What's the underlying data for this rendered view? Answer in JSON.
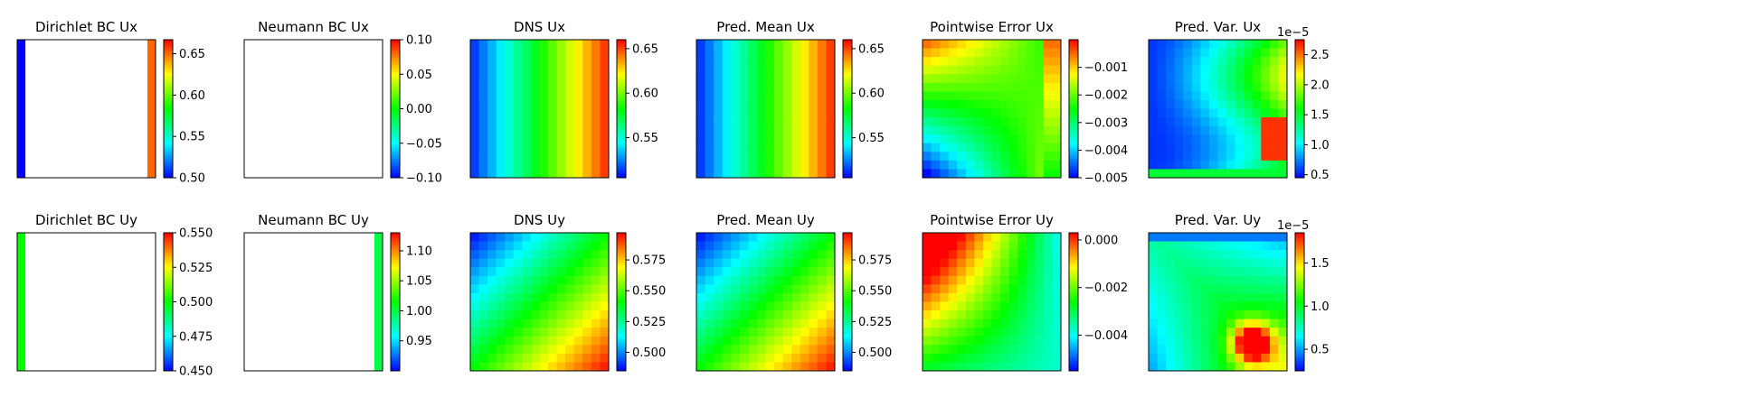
{
  "colormap": [
    "#0000ff",
    "#0080ff",
    "#00ffff",
    "#00ff80",
    "#00ff00",
    "#80ff00",
    "#ffff00",
    "#ff8000",
    "#ff0000"
  ],
  "chart_data": [
    {
      "type": "heatmap",
      "title": "Dirichlet BC Ux",
      "grid": 16,
      "field": "dirichlet_x",
      "left": 0.5,
      "right": 0.65,
      "vmin": 0.5,
      "vmax": 0.667,
      "ticks": [
        0.5,
        0.55,
        0.6,
        0.65
      ],
      "tick_labels": [
        "0.50",
        "0.55",
        "0.60",
        "0.65"
      ],
      "exponent": ""
    },
    {
      "type": "heatmap",
      "title": "Neumann BC Ux",
      "grid": 16,
      "field": "blank",
      "vmin": -0.1,
      "vmax": 0.1,
      "ticks": [
        -0.1,
        -0.05,
        0,
        0.05,
        0.1
      ],
      "tick_labels": [
        "−0.10",
        "−0.05",
        "0.00",
        "0.05",
        "0.10"
      ],
      "exponent": ""
    },
    {
      "type": "heatmap",
      "title": "DNS Ux",
      "grid": 16,
      "field": "ramp_x",
      "vmin": 0.505,
      "vmax": 0.66,
      "ticks": [
        0.55,
        0.6,
        0.65
      ],
      "tick_labels": [
        "0.55",
        "0.60",
        "0.65"
      ],
      "exponent": ""
    },
    {
      "type": "heatmap",
      "title": "Pred. Mean Ux",
      "grid": 16,
      "field": "ramp_x",
      "vmin": 0.505,
      "vmax": 0.66,
      "ticks": [
        0.55,
        0.6,
        0.65
      ],
      "tick_labels": [
        "0.55",
        "0.60",
        "0.65"
      ],
      "exponent": ""
    },
    {
      "type": "heatmap",
      "title": "Pointwise Error Ux",
      "grid": 16,
      "field": "error_x",
      "vmin": -0.005,
      "vmax": 0,
      "ticks": [
        -0.005,
        -0.004,
        -0.003,
        -0.002,
        -0.001
      ],
      "tick_labels": [
        "−0.005",
        "−0.004",
        "−0.003",
        "−0.002",
        "−0.001"
      ],
      "exponent": ""
    },
    {
      "type": "heatmap",
      "title": "Pred. Var. Ux",
      "grid": 16,
      "field": "var_x",
      "vmin": 0.45,
      "vmax": 2.75,
      "ticks": [
        0.5,
        1.0,
        1.5,
        2.0,
        2.5
      ],
      "tick_labels": [
        "0.5",
        "1.0",
        "1.5",
        "2.0",
        "2.5"
      ],
      "exponent": "1e−5"
    },
    {
      "type": "heatmap",
      "title": "Dirichlet BC Uy",
      "grid": 16,
      "field": "dirichlet_y",
      "left": 0.5,
      "vmin": 0.45,
      "vmax": 0.55,
      "ticks": [
        0.45,
        0.475,
        0.5,
        0.525,
        0.55
      ],
      "tick_labels": [
        "0.450",
        "0.475",
        "0.500",
        "0.525",
        "0.550"
      ],
      "exponent": ""
    },
    {
      "type": "heatmap",
      "title": "Neumann BC Uy",
      "grid": 16,
      "field": "neumann_y",
      "right": 1.0,
      "vmin": 0.9,
      "vmax": 1.13,
      "ticks": [
        0.95,
        1.0,
        1.05,
        1.1
      ],
      "tick_labels": [
        "0.95",
        "1.00",
        "1.05",
        "1.10"
      ],
      "exponent": ""
    },
    {
      "type": "heatmap",
      "title": "DNS Uy",
      "grid": 16,
      "field": "diag_y",
      "vmin": 0.485,
      "vmax": 0.597,
      "ticks": [
        0.5,
        0.525,
        0.55,
        0.575
      ],
      "tick_labels": [
        "0.500",
        "0.525",
        "0.550",
        "0.575"
      ],
      "exponent": ""
    },
    {
      "type": "heatmap",
      "title": "Pred. Mean Uy",
      "grid": 16,
      "field": "diag_y",
      "vmin": 0.485,
      "vmax": 0.597,
      "ticks": [
        0.5,
        0.525,
        0.55,
        0.575
      ],
      "tick_labels": [
        "0.500",
        "0.525",
        "0.550",
        "0.575"
      ],
      "exponent": ""
    },
    {
      "type": "heatmap",
      "title": "Pointwise Error Uy",
      "grid": 16,
      "field": "error_y",
      "vmin": -0.0055,
      "vmax": 0.0003,
      "ticks": [
        -0.004,
        -0.002,
        0
      ],
      "tick_labels": [
        "−0.004",
        "−0.002",
        "0.000"
      ],
      "exponent": ""
    },
    {
      "type": "heatmap",
      "title": "Pred. Var. Uy",
      "grid": 16,
      "field": "var_y",
      "vmin": 0.25,
      "vmax": 1.85,
      "ticks": [
        0.5,
        1.0,
        1.5
      ],
      "tick_labels": [
        "0.5",
        "1.0",
        "1.5"
      ],
      "exponent": "1e−5"
    }
  ]
}
